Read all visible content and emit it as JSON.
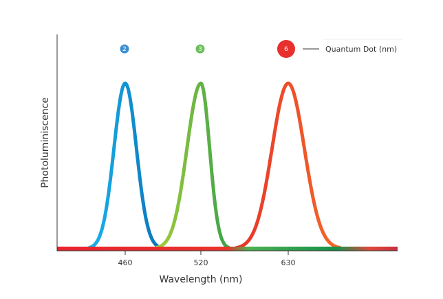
{
  "chart_data": {
    "type": "line",
    "title": "",
    "xlabel": "Wavelength (nm)",
    "ylabel": "Photoluminiscence",
    "x_ticks": [
      460,
      520,
      630
    ],
    "xlim": [
      406,
      768
    ],
    "ylim": [
      0,
      1.1
    ],
    "grid": false,
    "legend": {
      "label": "Quantum Dot (nm)",
      "placement": "top-right"
    },
    "series": [
      {
        "name": "2",
        "size_label": "2",
        "peak_nm": 460,
        "fwhm_nm": 21,
        "peak": 1,
        "color_start": "#1ab4ec",
        "color_end": "#0a74b8",
        "marker_color": "#3d8fd1"
      },
      {
        "name": "3",
        "size_label": "3",
        "peak_nm": 520,
        "fwhm_nm": 26,
        "peak": 1,
        "color_start": "#a6cd3a",
        "color_end": "#3aa34a",
        "marker_color": "#6bbf5a"
      },
      {
        "name": "6",
        "size_label": "6",
        "peak_nm": 630,
        "fwhm_nm": 48,
        "peak": 1,
        "color_start": "#e8332a",
        "color_end": "#f26a2a",
        "marker_color": "#e8302e"
      }
    ]
  }
}
